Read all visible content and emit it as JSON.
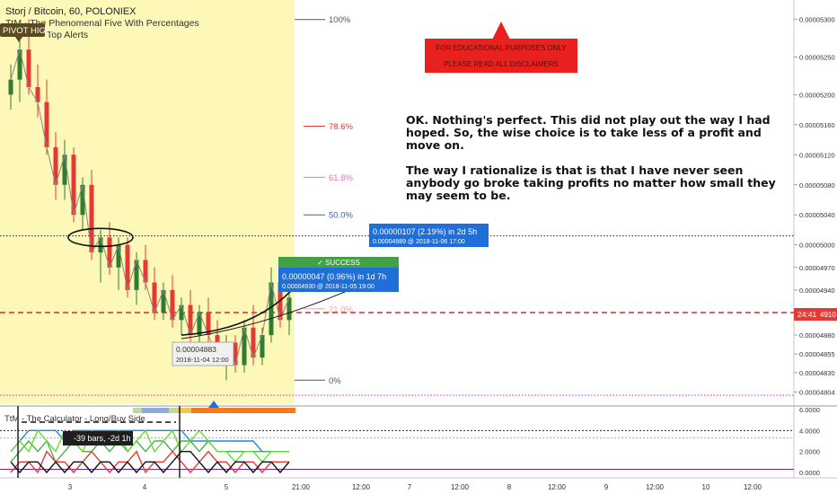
{
  "header": {
    "symbol": "Storj / Bitcoin, 60, POLONIEX",
    "indicator1": "TtM - The Phenomenal Five With Percentages",
    "indicator2": "Top Alerts",
    "pivot_label": "PIVOT HIGH"
  },
  "disclaimer": {
    "line1": "FOR EDUCATIONAL PURPOSES ONLY",
    "line2": "PLEASE READ ALL DISCLAIMERS"
  },
  "annotation": {
    "paragraph1": "OK. Nothing's perfect. This did not play out the way I had hoped. So, the wise choice is to take less of a profit and move on.",
    "paragraph2": "The way I rationalize is that is that I have never seen anybody go broke taking profits no matter how small they may seem to be."
  },
  "fib_levels": [
    {
      "label": "100%",
      "price": 5.3e-05,
      "color": "#555555"
    },
    {
      "label": "78.6%",
      "price": 5.158e-05,
      "color": "#e53935"
    },
    {
      "label": "61.8%",
      "price": 5.09e-05,
      "color": "#f06bd0"
    },
    {
      "label": "50.0%",
      "price": 5.04e-05,
      "color": "#3f5fa8"
    },
    {
      "label": "21.0%",
      "price": 4.915e-05,
      "color": "#f3a6a6"
    },
    {
      "label": "0%",
      "price": 4.82e-05,
      "color": "#555555"
    }
  ],
  "callouts": {
    "success_label": "✓ SUCCESS",
    "target_line1": "0.00000107 (2.19%) in 2d 5h",
    "target_line2": "0.00004989 @ 2018-11-06 17:00",
    "hit_line1": "0.00000047 (0.96%) in 1d 7h",
    "hit_line2": "0.00004930 @ 2018-11-05 19:00",
    "entry_line1": "0.00004883",
    "entry_line2": "2018-11-04 12:00"
  },
  "price_axis": {
    "labels": [
      "0.00005300",
      "0.00005250",
      "0.00005200",
      "0.00005160",
      "0.00005120",
      "0.00005080",
      "0.00005040",
      "0.00005000",
      "0.00004970",
      "0.00004940",
      "0.00004880",
      "0.00004855",
      "0.00004830",
      "0.00004804"
    ],
    "current_tag": "24:41",
    "current_tag_suffix": "4910"
  },
  "sub_panel": {
    "title": "TtM - The Calculator - Long/Buy Side",
    "axis_labels": [
      "6.0000",
      "4.0000",
      "2.0000",
      "0.0000"
    ],
    "bars_label": "-39 bars, -2d 1h"
  },
  "time_axis": {
    "labels": [
      "3",
      "4",
      "5",
      "21:00",
      "12:00",
      "7",
      "12:00",
      "8",
      "12:00",
      "9",
      "12:00",
      "10",
      "12:00"
    ]
  },
  "colors": {
    "up": "#2e7d32",
    "down": "#e53935",
    "highlight_bg": "#fdf7b8",
    "callout_blue": "#1e6fd9",
    "success_green": "#43a047",
    "current_price_red": "#e53935",
    "disclaimer_red": "#e8211f"
  },
  "chart_data": {
    "type": "candlestick",
    "title": "Storj / Bitcoin, 60, POLONIEX",
    "ylim": [
      4.8e-05,
      5.32e-05
    ],
    "reference_prices": {
      "current": 4.91e-05,
      "dotted_target": 5.012e-05,
      "magenta_low": 4.8e-05
    },
    "candles": [
      {
        "o": 5.2e-05,
        "h": 5.24e-05,
        "l": 5.18e-05,
        "c": 5.22e-05
      },
      {
        "o": 5.22e-05,
        "h": 5.28e-05,
        "l": 5.19e-05,
        "c": 5.26e-05
      },
      {
        "o": 5.26e-05,
        "h": 5.3e-05,
        "l": 5.2e-05,
        "c": 5.21e-05
      },
      {
        "o": 5.21e-05,
        "h": 5.24e-05,
        "l": 5.17e-05,
        "c": 5.19e-05
      },
      {
        "o": 5.19e-05,
        "h": 5.22e-05,
        "l": 5.12e-05,
        "c": 5.13e-05
      },
      {
        "o": 5.13e-05,
        "h": 5.15e-05,
        "l": 5.06e-05,
        "c": 5.08e-05
      },
      {
        "o": 5.08e-05,
        "h": 5.14e-05,
        "l": 5.06e-05,
        "c": 5.12e-05
      },
      {
        "o": 5.12e-05,
        "h": 5.13e-05,
        "l": 5.03e-05,
        "c": 5.04e-05
      },
      {
        "o": 5.04e-05,
        "h": 5.09e-05,
        "l": 5.02e-05,
        "c": 5.08e-05
      },
      {
        "o": 5.08e-05,
        "h": 5.1e-05,
        "l": 4.98e-05,
        "c": 4.99e-05
      },
      {
        "o": 4.99e-05,
        "h": 5.02e-05,
        "l": 4.95e-05,
        "c": 5.01e-05
      },
      {
        "o": 5.01e-05,
        "h": 5.03e-05,
        "l": 4.96e-05,
        "c": 4.97e-05
      },
      {
        "o": 4.97e-05,
        "h": 5.01e-05,
        "l": 4.94e-05,
        "c": 5e-05
      },
      {
        "o": 5e-05,
        "h": 5.01e-05,
        "l": 4.93e-05,
        "c": 4.94e-05
      },
      {
        "o": 4.94e-05,
        "h": 4.99e-05,
        "l": 4.92e-05,
        "c": 4.98e-05
      },
      {
        "o": 4.98e-05,
        "h": 5e-05,
        "l": 4.94e-05,
        "c": 4.95e-05
      },
      {
        "o": 4.95e-05,
        "h": 4.97e-05,
        "l": 4.9e-05,
        "c": 4.91e-05
      },
      {
        "o": 4.91e-05,
        "h": 4.95e-05,
        "l": 4.9e-05,
        "c": 4.94e-05
      },
      {
        "o": 4.94e-05,
        "h": 4.96e-05,
        "l": 4.89e-05,
        "c": 4.9e-05
      },
      {
        "o": 4.9e-05,
        "h": 4.93e-05,
        "l": 4.88e-05,
        "c": 4.92e-05
      },
      {
        "o": 4.92e-05,
        "h": 4.94e-05,
        "l": 4.87e-05,
        "c": 4.88e-05
      },
      {
        "o": 4.88e-05,
        "h": 4.92e-05,
        "l": 4.85e-05,
        "c": 4.91e-05
      },
      {
        "o": 4.91e-05,
        "h": 4.93e-05,
        "l": 4.87e-05,
        "c": 4.88e-05
      },
      {
        "o": 4.88e-05,
        "h": 4.9e-05,
        "l": 4.84e-05,
        "c": 4.85e-05
      },
      {
        "o": 4.85e-05,
        "h": 4.88e-05,
        "l": 4.82e-05,
        "c": 4.87e-05
      },
      {
        "o": 4.87e-05,
        "h": 4.88e-05,
        "l": 4.83e-05,
        "c": 4.84e-05
      },
      {
        "o": 4.84e-05,
        "h": 4.9e-05,
        "l": 4.83e-05,
        "c": 4.89e-05
      },
      {
        "o": 4.89e-05,
        "h": 4.92e-05,
        "l": 4.84e-05,
        "c": 4.85e-05
      },
      {
        "o": 4.85e-05,
        "h": 4.89e-05,
        "l": 4.84e-05,
        "c": 4.88e-05
      },
      {
        "o": 4.88e-05,
        "h": 4.97e-05,
        "l": 4.87e-05,
        "c": 4.95e-05
      },
      {
        "o": 4.95e-05,
        "h": 4.96e-05,
        "l": 4.89e-05,
        "c": 4.9e-05
      },
      {
        "o": 4.9e-05,
        "h": 4.94e-05,
        "l": 4.88e-05,
        "c": 4.93e-05
      }
    ],
    "sub_series": [
      {
        "color": "#1e88e5",
        "values": [
          2,
          3,
          4,
          4,
          4,
          4,
          3,
          4,
          4,
          4,
          4,
          4,
          4,
          4,
          4,
          4,
          4,
          4,
          4,
          4,
          3,
          3,
          3,
          3,
          3,
          3,
          3,
          3,
          2,
          2,
          2,
          2
        ]
      },
      {
        "color": "#4caf50",
        "values": [
          1,
          2,
          3,
          2,
          3,
          1,
          2,
          3,
          2,
          2,
          3,
          2,
          3,
          2,
          3,
          2,
          3,
          3,
          2,
          3,
          3,
          2,
          3,
          2,
          2,
          2,
          2,
          2,
          2,
          2,
          2,
          2
        ]
      },
      {
        "color": "#66dd33",
        "values": [
          2,
          3,
          2,
          4,
          3,
          2,
          4,
          3,
          2,
          4,
          3,
          3,
          4,
          2,
          3,
          4,
          2,
          3,
          4,
          2,
          3,
          4,
          3,
          2,
          2,
          1,
          2,
          2,
          1,
          2,
          2,
          2
        ]
      },
      {
        "color": "#e53935",
        "values": [
          0,
          1,
          1,
          0,
          2,
          1,
          1,
          0,
          1,
          2,
          1,
          0,
          1,
          1,
          2,
          0,
          1,
          1,
          2,
          1,
          0,
          1,
          2,
          1,
          1,
          0,
          1,
          1,
          0,
          1,
          1,
          1
        ]
      },
      {
        "color": "#111111",
        "values": [
          1,
          0,
          1,
          1,
          0,
          1,
          0,
          1,
          1,
          0,
          1,
          1,
          0,
          1,
          0,
          1,
          1,
          0,
          1,
          2,
          2,
          1,
          0,
          1,
          0,
          1,
          1,
          0,
          1,
          1,
          0,
          1
        ]
      }
    ],
    "sub_ylim": [
      0,
      6
    ]
  }
}
